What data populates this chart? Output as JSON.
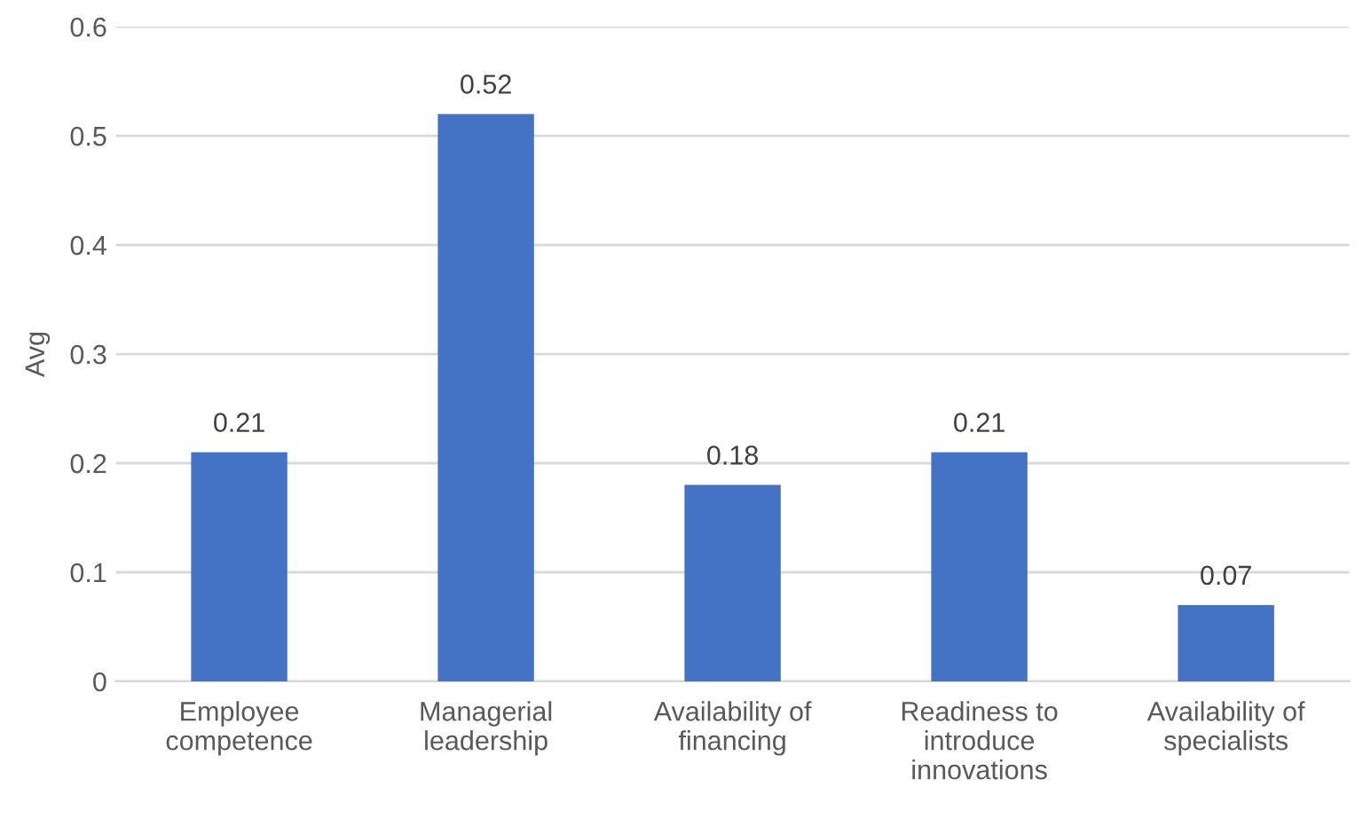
{
  "chart_data": {
    "type": "bar",
    "ylabel": "Avg",
    "categories": [
      "Employee\ncompetence",
      "Managerial\nleadership",
      "Availability of\nfinancing",
      "Readiness to\nintroduce\ninnovations",
      "Availability of\nspecialists"
    ],
    "values": [
      0.21,
      0.52,
      0.18,
      0.21,
      0.07
    ],
    "color": "#4472c4",
    "ylim": [
      0,
      0.6
    ],
    "yticks": [
      0,
      0.1,
      0.2,
      0.3,
      0.4,
      0.5,
      0.6
    ],
    "grid": "y",
    "data_labels": true,
    "legend": false
  }
}
